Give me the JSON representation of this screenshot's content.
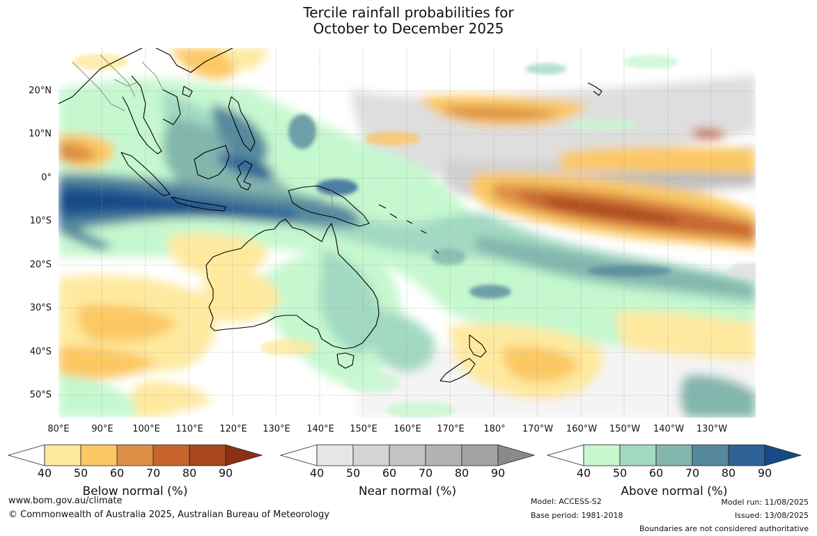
{
  "title": {
    "line1": "Tercile rainfall probabilities for",
    "line2": "October to December 2025"
  },
  "map": {
    "lat_labels": [
      "20°N",
      "10°N",
      "0°",
      "10°S",
      "20°S",
      "30°S",
      "40°S",
      "50°S"
    ],
    "lon_labels": [
      "80°E",
      "90°E",
      "100°E",
      "110°E",
      "120°E",
      "130°E",
      "140°E",
      "150°E",
      "160°E",
      "170°E",
      "180°",
      "170°W",
      "160°W",
      "150°W",
      "140°W",
      "130°W"
    ],
    "colors": {
      "land_outline": "#000000",
      "border": "#8a8a8a",
      "gridline": "#9a9a9a"
    }
  },
  "colorbars": [
    {
      "id": "below",
      "label": "Below normal (%)",
      "ticks": [
        "40",
        "50",
        "60",
        "70",
        "80",
        "90"
      ],
      "colors": [
        "#ffffff",
        "#fee99f",
        "#fcc864",
        "#dc9045",
        "#c8652e",
        "#a8461f",
        "#8b3014"
      ]
    },
    {
      "id": "near",
      "label": "Near normal (%)",
      "ticks": [
        "40",
        "50",
        "60",
        "70",
        "80",
        "90"
      ],
      "colors": [
        "#ffffff",
        "#e6e6e6",
        "#d5d5d5",
        "#c3c3c3",
        "#b3b3b3",
        "#a3a3a3",
        "#8a8a8a"
      ]
    },
    {
      "id": "above",
      "label": "Above normal (%)",
      "ticks": [
        "40",
        "50",
        "60",
        "70",
        "80",
        "90"
      ],
      "colors": [
        "#ffffff",
        "#c6f8cf",
        "#a3d9c2",
        "#83b6ad",
        "#56899e",
        "#2f6398",
        "#154a85"
      ]
    }
  ],
  "footer": {
    "website": "www.bom.gov.au/climate",
    "copyright": "© Commonwealth of Australia 2025, Australian Bureau of Meteorology",
    "model": "Model: ACCESS-S2",
    "base_period": "Base period: 1981-2018",
    "model_run": "Model run: 11/08/2025",
    "issued": "Issued: 13/08/2025",
    "disclaimer": "Boundaries are not considered authoritative"
  }
}
